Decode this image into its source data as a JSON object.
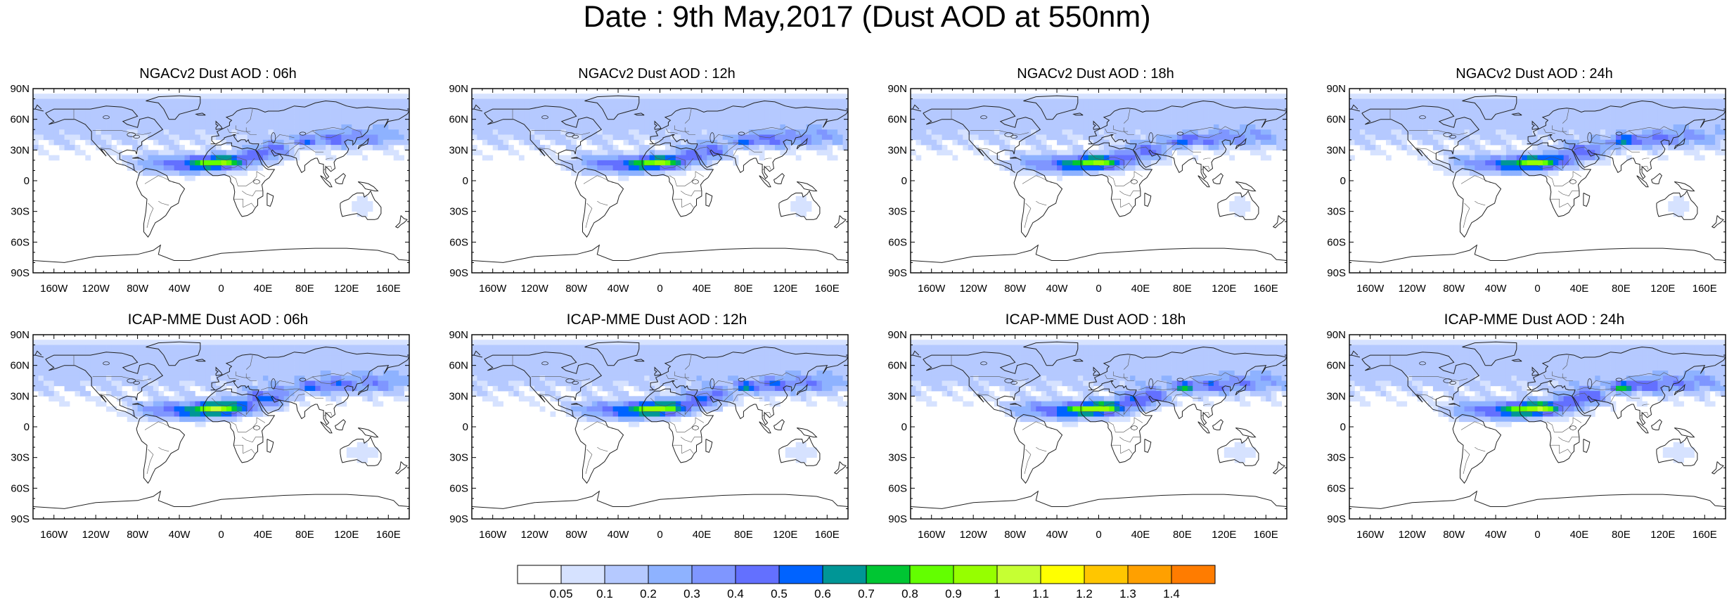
{
  "title": "Date : 9th May,2017 (Dust AOD at 550nm)",
  "lat_ticks": [
    "90N",
    "60N",
    "30N",
    "0",
    "30S",
    "60S",
    "90S"
  ],
  "lon_ticks": [
    "160W",
    "120W",
    "80W",
    "40W",
    "0",
    "40E",
    "80E",
    "120E",
    "160E"
  ],
  "panels": [
    {
      "title": "NGACv2 Dust AOD : 06h",
      "model": "NGACv2",
      "forecast_hour": "06h"
    },
    {
      "title": "NGACv2 Dust AOD : 12h",
      "model": "NGACv2",
      "forecast_hour": "12h"
    },
    {
      "title": "NGACv2 Dust AOD : 18h",
      "model": "NGACv2",
      "forecast_hour": "18h"
    },
    {
      "title": "NGACv2 Dust AOD : 24h",
      "model": "NGACv2",
      "forecast_hour": "24h"
    },
    {
      "title": "ICAP-MME Dust AOD : 06h",
      "model": "ICAP-MME",
      "forecast_hour": "06h"
    },
    {
      "title": "ICAP-MME Dust AOD : 12h",
      "model": "ICAP-MME",
      "forecast_hour": "12h"
    },
    {
      "title": "ICAP-MME Dust AOD : 18h",
      "model": "ICAP-MME",
      "forecast_hour": "18h"
    },
    {
      "title": "ICAP-MME Dust AOD : 24h",
      "model": "ICAP-MME",
      "forecast_hour": "24h"
    }
  ],
  "colorbar": {
    "labels": [
      "0.05",
      "0.1",
      "0.2",
      "0.3",
      "0.4",
      "0.5",
      "0.6",
      "0.7",
      "0.8",
      "0.9",
      "1",
      "1.1",
      "1.2",
      "1.3",
      "1.4"
    ],
    "colors": [
      "#ffffff",
      "#d6e2ff",
      "#b5c9ff",
      "#8eb2ff",
      "#7f96ff",
      "#6370ff",
      "#0063ff",
      "#009696",
      "#00c633",
      "#63ff00",
      "#96ff00",
      "#c6ff33",
      "#ffff00",
      "#ffc600",
      "#ffa000",
      "#ff7c00",
      "#ff1900"
    ]
  }
}
